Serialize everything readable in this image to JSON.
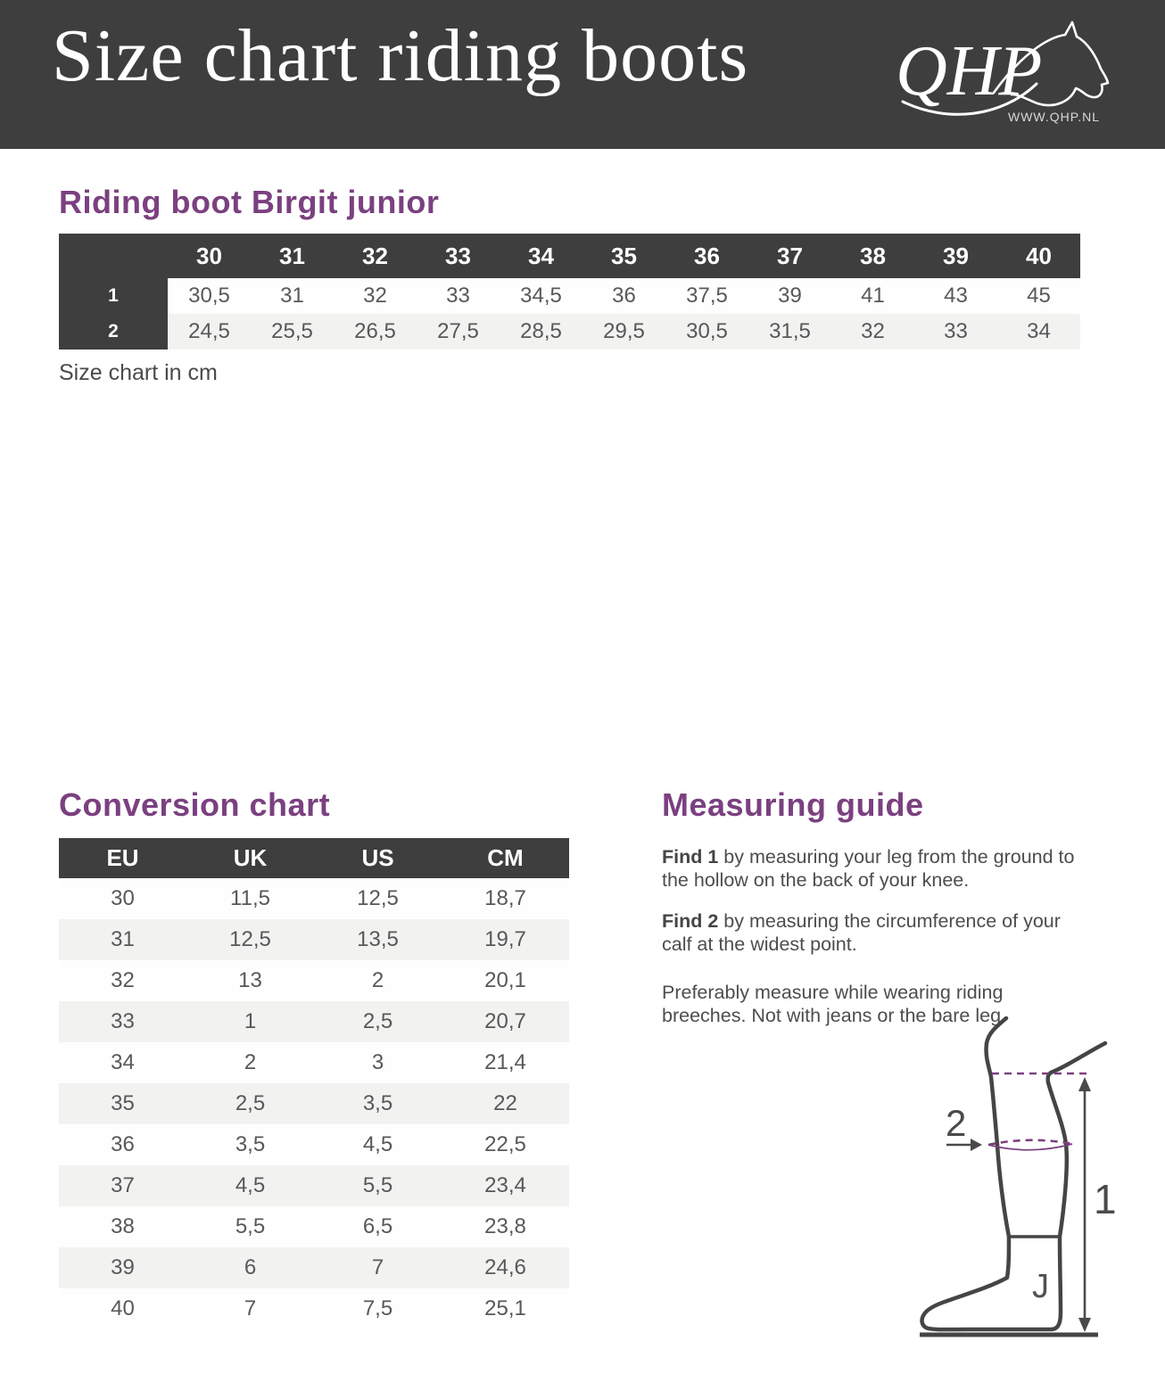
{
  "colors": {
    "dark_bar": "#3E3E3E",
    "brand_purple": "#7B4080",
    "row_alt_gray": "#F2F2F0",
    "cell_text": "#58585A",
    "body_text": "#4D4D4F"
  },
  "header": {
    "title": "Size chart riding boots",
    "logo": {
      "text": "QHP",
      "url": "WWW.QHP.NL",
      "icon": "horse-head-icon"
    }
  },
  "size_section": {
    "heading": "Riding boot Birgit junior",
    "note": "Size chart in cm",
    "chart_data": {
      "type": "table",
      "columns": [
        "30",
        "31",
        "32",
        "33",
        "34",
        "35",
        "36",
        "37",
        "38",
        "39",
        "40"
      ],
      "rows": [
        {
          "label": "1",
          "values": [
            "30,5",
            "31",
            "32",
            "33",
            "34,5",
            "36",
            "37,5",
            "39",
            "41",
            "43",
            "45"
          ]
        },
        {
          "label": "2",
          "values": [
            "24,5",
            "25,5",
            "26,5",
            "27,5",
            "28,5",
            "29,5",
            "30,5",
            "31,5",
            "32",
            "33",
            "34"
          ]
        }
      ]
    }
  },
  "conversion_section": {
    "heading": "Conversion chart",
    "chart_data": {
      "type": "table",
      "columns": [
        "EU",
        "UK",
        "US",
        "CM"
      ],
      "rows": [
        [
          "30",
          "11,5",
          "12,5",
          "18,7"
        ],
        [
          "31",
          "12,5",
          "13,5",
          "19,7"
        ],
        [
          "32",
          "13",
          "2",
          "20,1"
        ],
        [
          "33",
          "1",
          "2,5",
          "20,7"
        ],
        [
          "34",
          "2",
          "3",
          "21,4"
        ],
        [
          "35",
          "2,5",
          "3,5",
          "22"
        ],
        [
          "36",
          "3,5",
          "4,5",
          "22,5"
        ],
        [
          "37",
          "4,5",
          "5,5",
          "23,4"
        ],
        [
          "38",
          "5,5",
          "6,5",
          "23,8"
        ],
        [
          "39",
          "6",
          "7",
          "24,6"
        ],
        [
          "40",
          "7",
          "7,5",
          "25,1"
        ]
      ]
    }
  },
  "measuring_guide": {
    "heading": "Measuring guide",
    "paragraphs": [
      {
        "bold": "Find 1",
        "text": " by measuring your leg from the ground to the hollow on the back of your knee."
      },
      {
        "bold": "Find 2",
        "text": " by measuring the circumference of your calf at the widest point."
      },
      {
        "bold": "",
        "text": "Preferably measure while wearing riding breeches. Not with jeans or the bare leg."
      }
    ],
    "diagram": {
      "label_height": "1",
      "label_calf": "2",
      "boot_mark": "J"
    }
  }
}
